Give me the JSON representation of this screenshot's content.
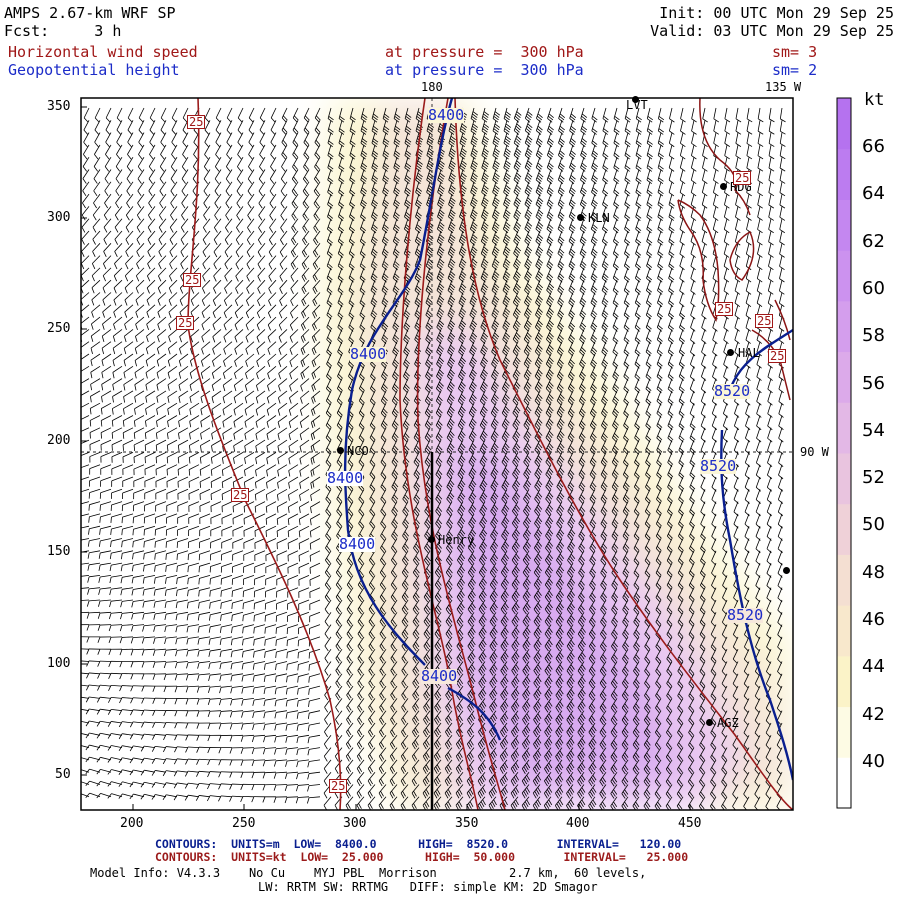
{
  "header": {
    "model": "AMPS 2.67-km WRF SP",
    "forecast": "Fcst:     3 h",
    "init": "Init: 00 UTC Mon 29 Sep 25",
    "valid": "Valid: 03 UTC Mon 29 Sep 25",
    "field1_name": "Horizontal wind speed",
    "field1_level": "at pressure =  300 hPa",
    "field1_sm": "sm= 3",
    "field2_name": "Geopotential height",
    "field2_level": "at pressure =  300 hPa",
    "field2_sm": "sm= 2"
  },
  "map": {
    "x_ticks": [
      "200",
      "250",
      "300",
      "350",
      "400",
      "450"
    ],
    "y_ticks": [
      "50",
      "100",
      "150",
      "200",
      "250",
      "300",
      "350"
    ],
    "meridian_labels": {
      "top_center": "180",
      "top_right": "135 W",
      "right_mid": "90 W"
    },
    "stations": [
      {
        "name": "LVT"
      },
      {
        "name": "RDG"
      },
      {
        "name": "KLN"
      },
      {
        "name": "HAL"
      },
      {
        "name": "NCO"
      },
      {
        "name": "Henry"
      },
      {
        "name": "AGZ"
      }
    ],
    "height_contour_labels": [
      "8400",
      "8400",
      "8400",
      "8400",
      "8400",
      "8520",
      "8520",
      "8520"
    ],
    "speed_contour_labels": [
      "25",
      "25",
      "25",
      "25",
      "25",
      "25",
      "25",
      "25",
      "25"
    ]
  },
  "colorbar": {
    "unit": "kt",
    "labels": [
      "66",
      "64",
      "62",
      "60",
      "58",
      "56",
      "54",
      "52",
      "50",
      "48",
      "46",
      "44",
      "42",
      "40"
    ]
  },
  "footer": {
    "height_contours": "CONTOURS:  UNITS=m  LOW=  8400.0      HIGH=  8520.0       INTERVAL=   120.00",
    "speed_contours": "CONTOURS:  UNITS=kt  LOW=  25.000      HIGH=  50.000       INTERVAL=   25.000",
    "model_info": "Model Info: V4.3.3    No Cu    MYJ PBL  Morrison          2.7 km,  60 levels,",
    "physics": "LW: RRTM SW: RRTMG   DIFF: simple KM: 2D Smagor"
  },
  "colors": {
    "height_contour": "#0a1f8f",
    "speed_contour": "#9b1b1b",
    "label_red": "#a01818",
    "label_blue": "#1c2cc8"
  }
}
